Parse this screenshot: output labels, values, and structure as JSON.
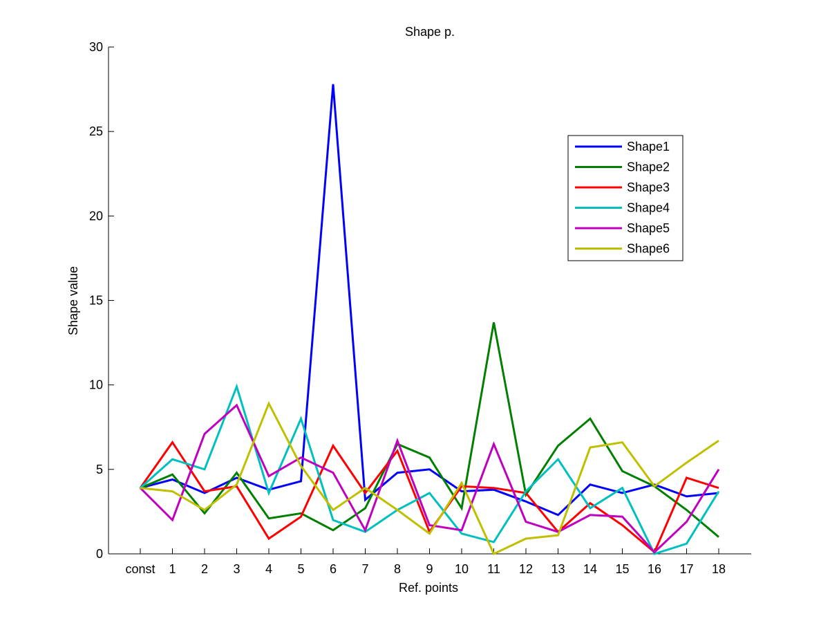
{
  "chart_data": {
    "type": "line",
    "title": "Shape p.",
    "xlabel": "Ref. points",
    "ylabel": "Shape value",
    "categories": [
      "const",
      "1",
      "2",
      "3",
      "4",
      "5",
      "6",
      "7",
      "8",
      "9",
      "10",
      "11",
      "12",
      "13",
      "14",
      "15",
      "16",
      "17",
      "18"
    ],
    "ylim": [
      0,
      30
    ],
    "yticks": [
      0,
      5,
      10,
      15,
      20,
      25,
      30
    ],
    "grid": false,
    "legend_position": "top-right",
    "series": [
      {
        "name": "Shape1",
        "color": "#0000ff",
        "values": [
          3.9,
          4.4,
          3.6,
          4.5,
          3.8,
          4.3,
          27.8,
          3.2,
          4.8,
          5.0,
          3.7,
          3.8,
          3.1,
          2.3,
          4.1,
          3.6,
          4.1,
          3.4,
          3.6
        ]
      },
      {
        "name": "Shape2",
        "color": "#007f00",
        "values": [
          3.9,
          4.7,
          2.4,
          4.8,
          2.1,
          2.4,
          1.4,
          2.7,
          6.5,
          5.7,
          2.7,
          13.7,
          3.5,
          6.4,
          8.0,
          4.9,
          4.0,
          2.6,
          1.0
        ]
      },
      {
        "name": "Shape3",
        "color": "#ff0000",
        "values": [
          3.9,
          6.6,
          3.7,
          4.0,
          0.9,
          2.2,
          6.4,
          3.6,
          6.1,
          1.3,
          4.0,
          3.9,
          3.6,
          1.3,
          3.0,
          1.7,
          0.1,
          4.5,
          3.9
        ]
      },
      {
        "name": "Shape4",
        "color": "#00bfbf",
        "values": [
          3.9,
          5.6,
          5.0,
          9.9,
          3.6,
          8.0,
          2.0,
          1.3,
          2.6,
          3.6,
          1.2,
          0.7,
          3.7,
          5.6,
          2.7,
          3.9,
          0.0,
          0.6,
          3.7
        ]
      },
      {
        "name": "Shape5",
        "color": "#bf00bf",
        "values": [
          3.9,
          2.0,
          7.1,
          8.8,
          4.6,
          5.7,
          4.8,
          1.4,
          6.7,
          1.7,
          1.4,
          6.5,
          1.9,
          1.3,
          2.3,
          2.2,
          0.1,
          1.9,
          5.0
        ]
      },
      {
        "name": "Shape6",
        "color": "#bfbf00",
        "values": [
          3.9,
          3.7,
          2.6,
          4.1,
          8.9,
          5.2,
          2.6,
          3.9,
          2.6,
          1.2,
          4.2,
          0.0,
          0.9,
          1.1,
          6.3,
          6.6,
          4.0,
          5.4,
          6.7
        ]
      }
    ]
  }
}
